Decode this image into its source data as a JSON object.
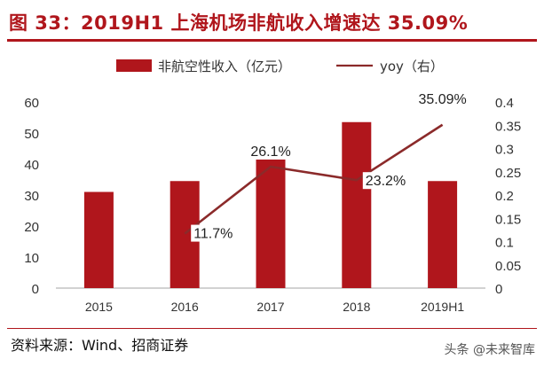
{
  "header": {
    "figure_title": "图 33：2019H1 上海机场非航收入增速达 35.09%"
  },
  "footer": {
    "source": "资料来源：Wind、招商证券",
    "watermark": "头条 @未来智库"
  },
  "colors": {
    "title": "#b0161c",
    "bar": "#b0161c",
    "line": "#8b2a2a"
  },
  "chart_data": {
    "type": "bar",
    "categories": [
      "2015",
      "2016",
      "2017",
      "2018",
      "2019H1"
    ],
    "series": [
      {
        "name": "非航空性收入（亿元）",
        "type": "bar",
        "axis": "left",
        "values": [
          31,
          34.5,
          44,
          53.5,
          34.5
        ]
      },
      {
        "name": "yoy（右）",
        "type": "line",
        "axis": "right",
        "values": [
          null,
          0.117,
          0.261,
          0.232,
          0.3509
        ],
        "data_labels": [
          "",
          "11.7%",
          "26.1%",
          "23.2%",
          "35.09%"
        ]
      }
    ],
    "y_left": {
      "ylim": [
        0,
        60
      ],
      "ticks": [
        "0",
        "10",
        "20",
        "30",
        "40",
        "50",
        "60"
      ]
    },
    "y_right": {
      "ylim": [
        0,
        0.4
      ],
      "ticks": [
        "0",
        "0.05",
        "0.1",
        "0.15",
        "0.2",
        "0.25",
        "0.3",
        "0.35",
        "0.4"
      ]
    },
    "legend_position": "top",
    "grid": false
  }
}
